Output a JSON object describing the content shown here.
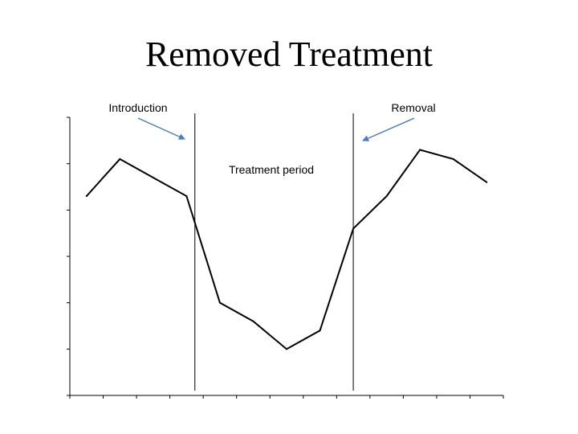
{
  "chart_data": {
    "type": "line",
    "title": "Removed Treatment",
    "xlabel": "",
    "ylabel": "",
    "grid": false,
    "x": [
      1,
      2,
      3,
      4,
      5,
      6,
      7,
      8,
      9,
      10,
      11,
      12,
      13
    ],
    "series": [
      {
        "values": [
          4.3,
          5.1,
          4.7,
          4.3,
          2.0,
          1.6,
          1.0,
          1.4,
          3.6,
          4.3,
          5.3,
          5.1,
          4.6
        ]
      }
    ],
    "xlim": [
      0.5,
      13.5
    ],
    "ylim": [
      0,
      6
    ],
    "x_ticks": 13,
    "y_ticks": 6,
    "phase_lines": [
      {
        "x": 4.25,
        "label": "Introduction"
      },
      {
        "x": 9.0,
        "label": "Removal"
      }
    ],
    "annotations": [
      {
        "text": "Treatment period"
      }
    ],
    "colors": {
      "line": "#000000",
      "arrow": "#4a7ebb",
      "axis": "#000000"
    }
  }
}
